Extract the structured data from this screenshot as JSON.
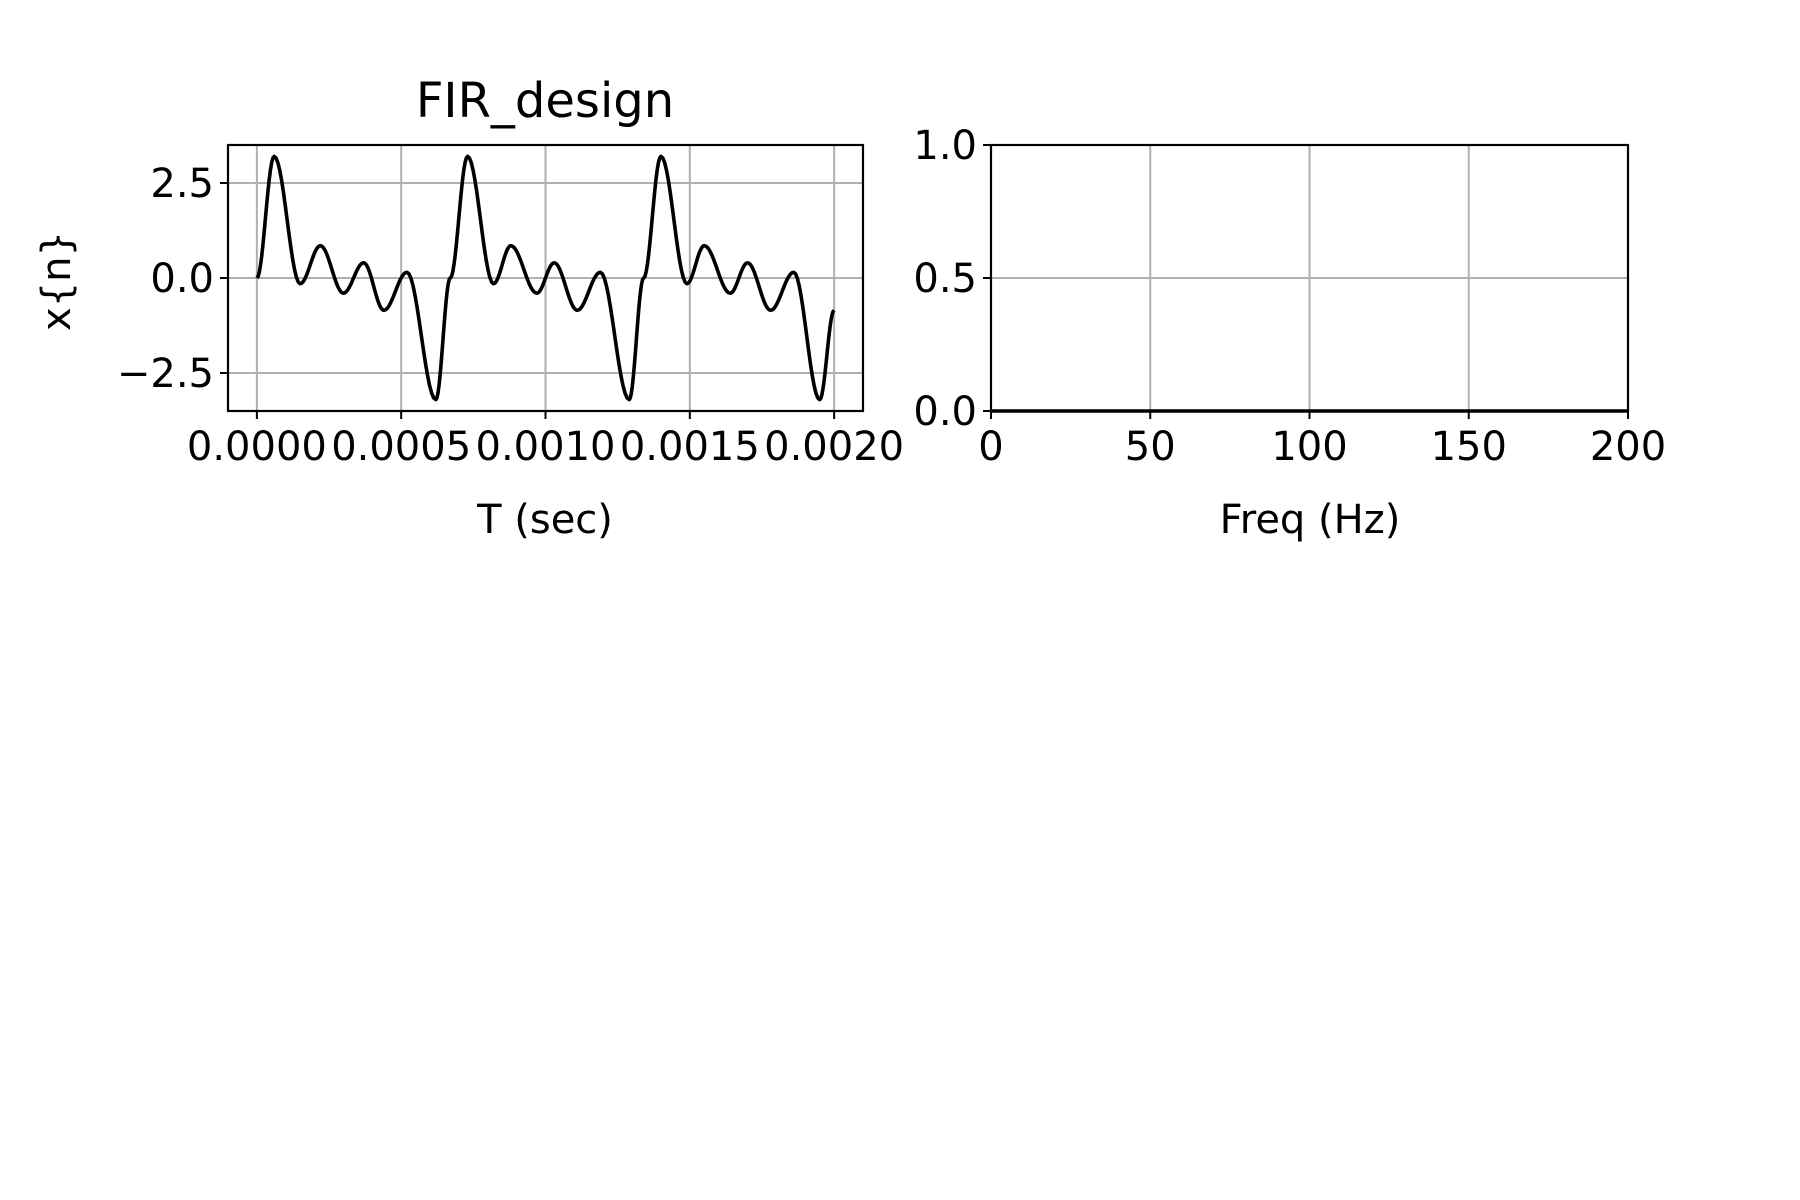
{
  "chart_data": [
    {
      "type": "line",
      "title": "FIR_design",
      "xlabel": "T (sec)",
      "ylabel": "x{n}",
      "xlim": [
        -0.0001,
        0.0021
      ],
      "ylim": [
        -3.5,
        3.5
      ],
      "xticks": [
        0.0,
        0.0005,
        0.001,
        0.0015,
        0.002
      ],
      "xtick_labels": [
        "0.0000",
        "0.0005",
        "0.0010",
        "0.0015",
        "0.0020"
      ],
      "yticks": [
        -2.5,
        0.0,
        2.5
      ],
      "ytick_labels": [
        "−2.5",
        "0.0",
        "2.5"
      ],
      "grid": true,
      "series": [
        {
          "color": "#000000",
          "x": [
            0.0,
            6e-05,
            0.00015,
            0.00022,
            0.0003,
            0.00037,
            0.00044,
            0.00052,
            0.00062,
            0.00067,
            0.00073,
            0.00082,
            0.00088,
            0.00097,
            0.00103,
            0.00111,
            0.00119,
            0.00129,
            0.00134,
            0.0014,
            0.00149,
            0.00155,
            0.00164,
            0.0017,
            0.00178,
            0.00186,
            0.00195,
            0.002
          ],
          "y": [
            0.0,
            3.2,
            -0.15,
            0.85,
            -0.4,
            0.4,
            -0.85,
            0.15,
            -3.2,
            0.0,
            3.2,
            -0.15,
            0.85,
            -0.4,
            0.4,
            -0.85,
            0.15,
            -3.2,
            0.0,
            3.2,
            -0.15,
            0.85,
            -0.4,
            0.4,
            -0.85,
            0.15,
            -3.2,
            -0.85
          ]
        }
      ]
    },
    {
      "type": "line",
      "title": "",
      "xlabel": "Freq (Hz)",
      "ylabel": "",
      "xlim": [
        0,
        200
      ],
      "ylim": [
        0.0,
        1.0
      ],
      "xticks": [
        0,
        50,
        100,
        150,
        200
      ],
      "xtick_labels": [
        "0",
        "50",
        "100",
        "150",
        "200"
      ],
      "yticks": [
        0.0,
        0.5,
        1.0
      ],
      "ytick_labels": [
        "0.0",
        "0.5",
        "1.0"
      ],
      "grid": true,
      "series": [
        {
          "color": "#000000",
          "x": [
            0,
            200
          ],
          "y": [
            0.0,
            0.0
          ]
        }
      ]
    }
  ]
}
